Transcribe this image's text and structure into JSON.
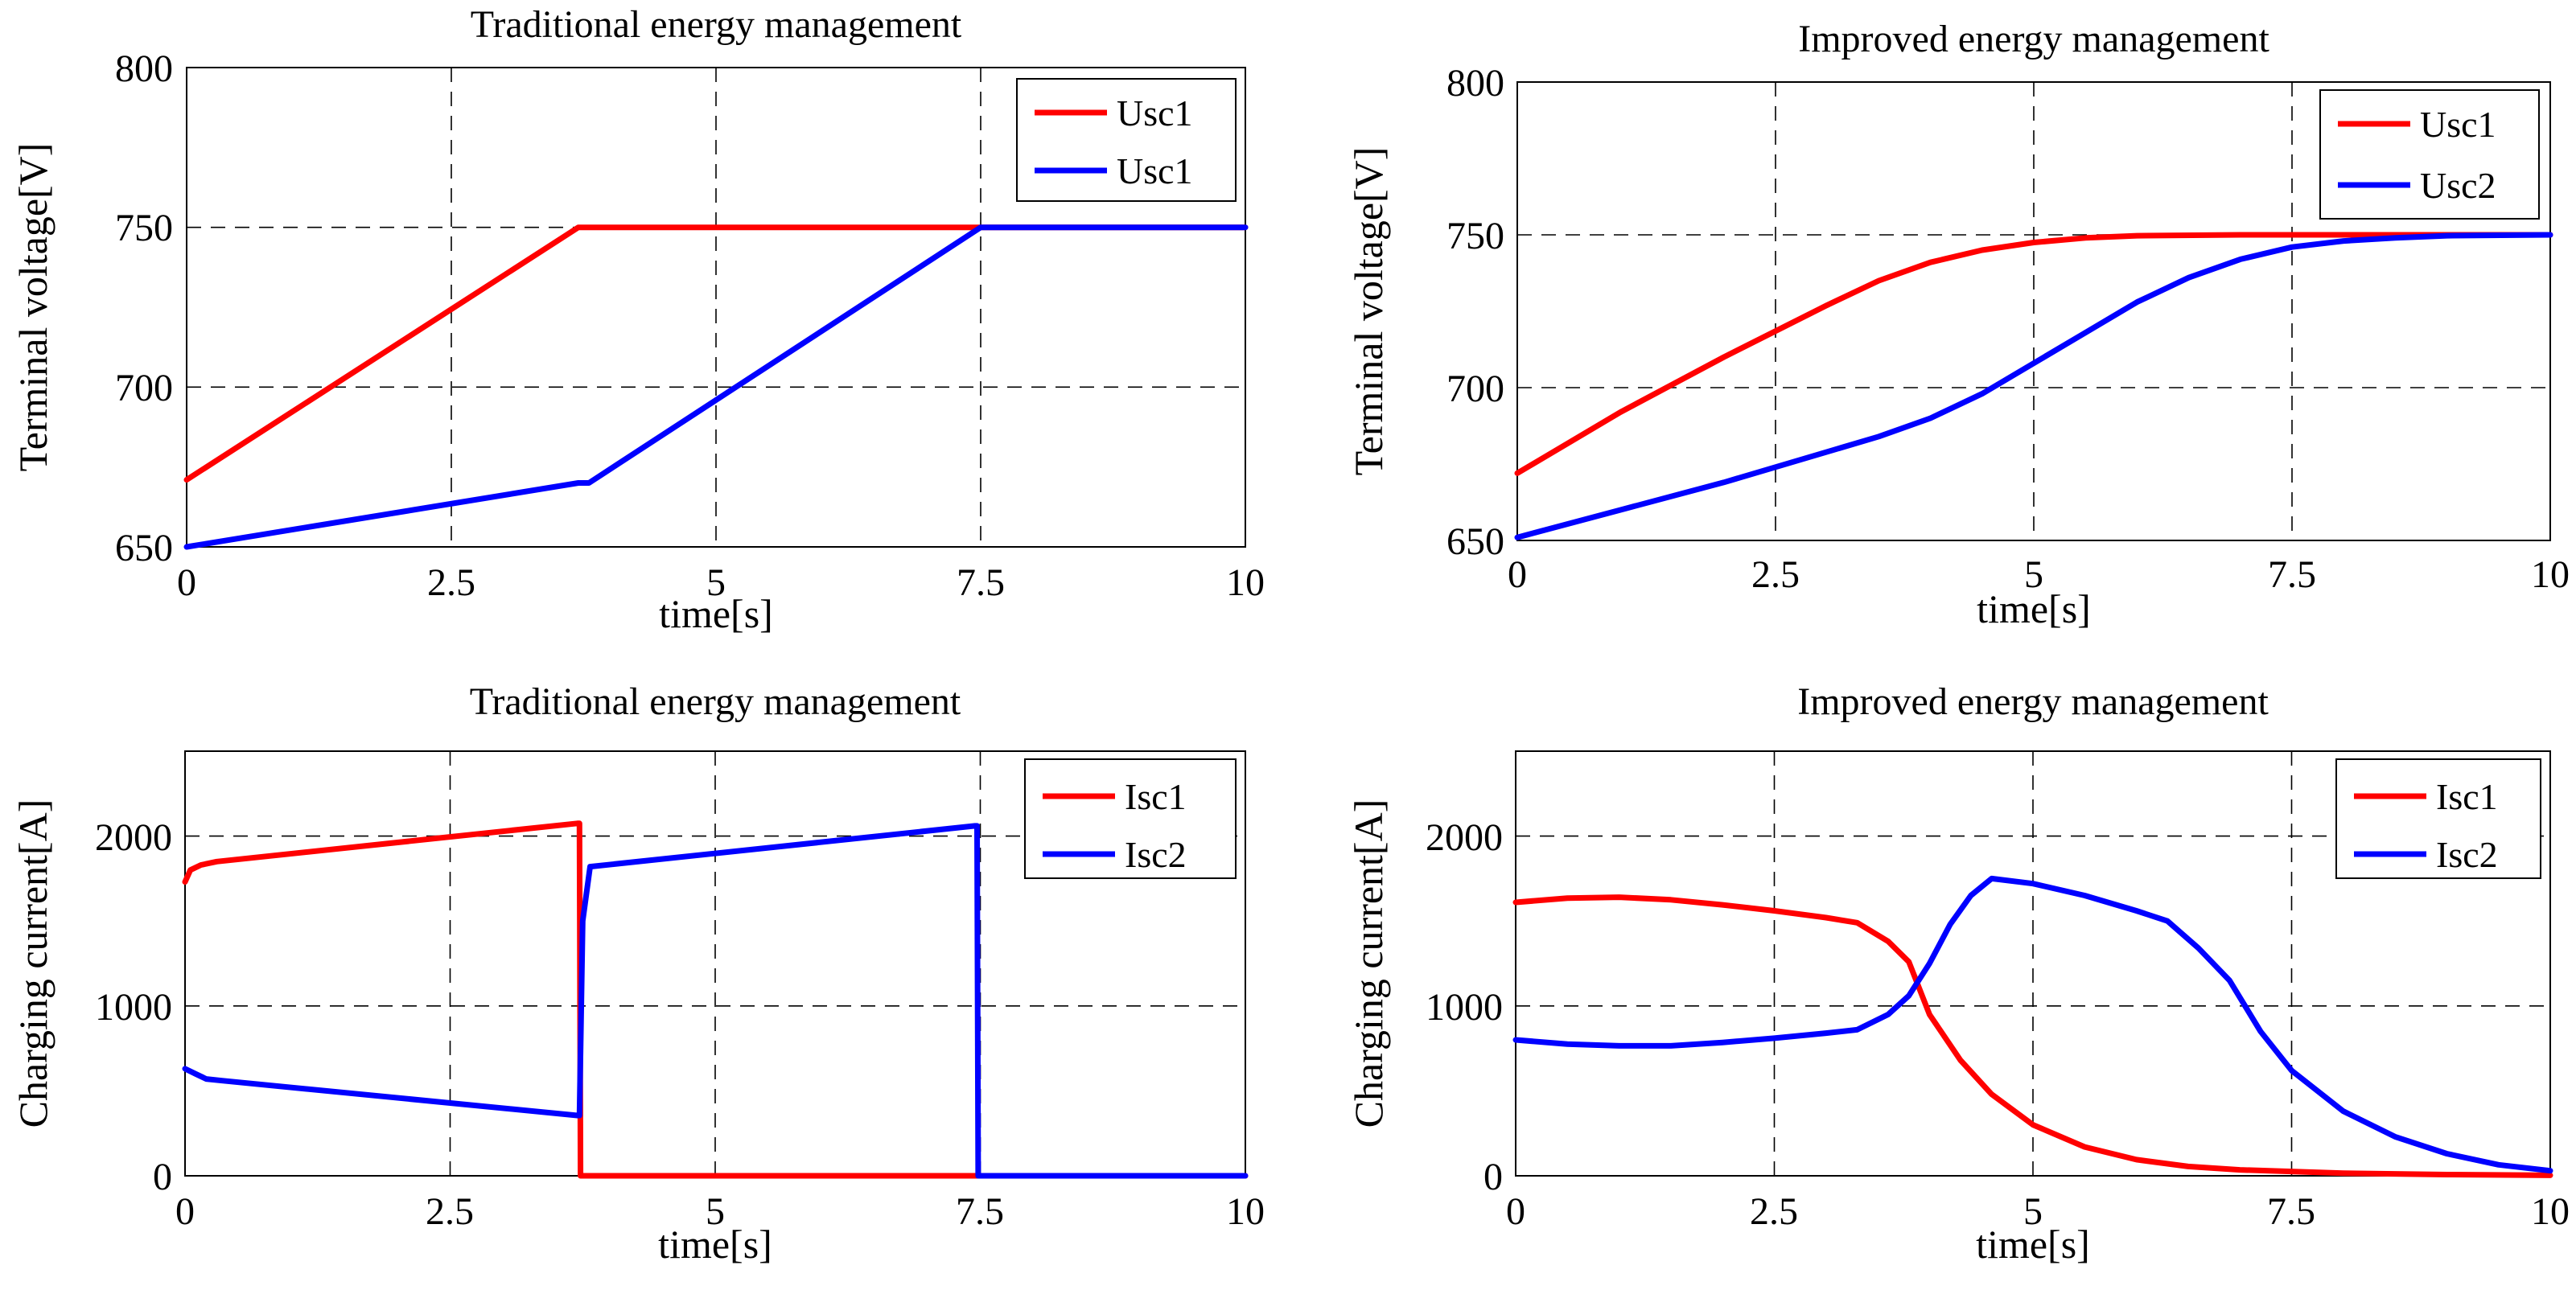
{
  "chart_data": [
    {
      "type": "line",
      "title": "Traditional energy management",
      "xlabel": "time[s]",
      "ylabel": "Terminal voltage[V]",
      "xlim": [
        0,
        10
      ],
      "ylim": [
        650,
        800
      ],
      "xticks": [
        0,
        2.5,
        5,
        7.5,
        10
      ],
      "xtick_labels": [
        "0",
        "2.5",
        "5",
        "7.5",
        "10"
      ],
      "yticks": [
        650,
        700,
        750,
        800
      ],
      "ytick_labels": [
        "650",
        "700",
        "750",
        "800"
      ],
      "grid": true,
      "legend_position": "top-right",
      "series": [
        {
          "name": "Usc1",
          "color": "#ff0000",
          "x": [
            0,
            3.7,
            10
          ],
          "y": [
            671,
            750,
            750
          ]
        },
        {
          "name": "Usc1",
          "color": "#0000ff",
          "x": [
            0,
            3.7,
            3.8,
            7.5,
            10
          ],
          "y": [
            650,
            670,
            670,
            750,
            750
          ]
        }
      ]
    },
    {
      "type": "line",
      "title": "Improved energy management",
      "xlabel": "time[s]",
      "ylabel": "Terminal voltage[V]",
      "xlim": [
        0,
        10
      ],
      "ylim": [
        650,
        800
      ],
      "xticks": [
        0,
        2.5,
        5,
        7.5,
        10
      ],
      "xtick_labels": [
        "0",
        "2.5",
        "5",
        "7.5",
        "10"
      ],
      "yticks": [
        650,
        700,
        750,
        800
      ],
      "ytick_labels": [
        "650",
        "700",
        "750",
        "800"
      ],
      "grid": true,
      "legend_position": "top-right",
      "series": [
        {
          "name": "Usc1",
          "color": "#ff0000",
          "x": [
            0,
            1,
            2,
            3,
            3.5,
            4,
            4.5,
            5,
            5.5,
            6,
            7,
            8,
            10
          ],
          "y": [
            672,
            692,
            710,
            727,
            735,
            741,
            745,
            747.5,
            749,
            749.7,
            750,
            750,
            750
          ]
        },
        {
          "name": "Usc2",
          "color": "#0000ff",
          "x": [
            0,
            1,
            2,
            3,
            3.5,
            4,
            4.5,
            5,
            5.5,
            6,
            6.5,
            7,
            7.5,
            8,
            8.5,
            9,
            10
          ],
          "y": [
            651,
            660,
            669,
            679,
            684,
            690,
            698,
            708,
            718,
            728,
            736,
            742,
            746,
            748,
            749,
            749.7,
            750
          ]
        }
      ]
    },
    {
      "type": "line",
      "title": "Traditional energy management",
      "xlabel": "time[s]",
      "ylabel": "Charging current[A]",
      "xlim": [
        0,
        10
      ],
      "ylim": [
        0,
        2500
      ],
      "xticks": [
        0,
        2.5,
        5,
        7.5,
        10
      ],
      "xtick_labels": [
        "0",
        "2.5",
        "5",
        "7.5",
        "10"
      ],
      "yticks": [
        0,
        1000,
        2000
      ],
      "ytick_labels": [
        "0",
        "1000",
        "2000"
      ],
      "grid": true,
      "legend_position": "top-right",
      "series": [
        {
          "name": "Isc1",
          "color": "#ff0000",
          "x": [
            0,
            0.05,
            0.15,
            0.3,
            3.7,
            3.72,
            3.73,
            10
          ],
          "y": [
            1730,
            1800,
            1830,
            1850,
            2075,
            2075,
            0,
            0
          ]
        },
        {
          "name": "Isc2",
          "color": "#0000ff",
          "x": [
            0,
            0.1,
            0.2,
            0.35,
            3.7,
            3.72,
            3.75,
            3.82,
            7.45,
            7.47,
            7.48,
            10
          ],
          "y": [
            630,
            600,
            570,
            560,
            355,
            355,
            1500,
            1820,
            2060,
            2060,
            0,
            0
          ]
        }
      ]
    },
    {
      "type": "line",
      "title": "Improved energy management",
      "xlabel": "time[s]",
      "ylabel": "Charging current[A]",
      "xlim": [
        0,
        10
      ],
      "ylim": [
        0,
        2500
      ],
      "xticks": [
        0,
        2.5,
        5,
        7.5,
        10
      ],
      "xtick_labels": [
        "0",
        "2.5",
        "5",
        "7.5",
        "10"
      ],
      "yticks": [
        0,
        1000,
        2000
      ],
      "ytick_labels": [
        "0",
        "1000",
        "2000"
      ],
      "grid": true,
      "legend_position": "top-right",
      "series": [
        {
          "name": "Isc1",
          "color": "#ff0000",
          "x": [
            0,
            0.5,
            1,
            1.5,
            2,
            2.5,
            3,
            3.3,
            3.6,
            3.8,
            4,
            4.3,
            4.6,
            5,
            5.5,
            6,
            6.5,
            7,
            8,
            9,
            10
          ],
          "y": [
            1610,
            1635,
            1640,
            1625,
            1595,
            1560,
            1520,
            1490,
            1380,
            1260,
            950,
            680,
            480,
            300,
            170,
            95,
            55,
            35,
            15,
            7,
            3
          ]
        },
        {
          "name": "Isc2",
          "color": "#0000ff",
          "x": [
            0,
            0.5,
            1,
            1.5,
            2,
            2.5,
            3,
            3.3,
            3.6,
            3.8,
            4,
            4.2,
            4.4,
            4.6,
            5,
            5.5,
            6,
            6.3,
            6.6,
            6.9,
            7.2,
            7.5,
            8,
            8.5,
            9,
            9.5,
            10
          ],
          "y": [
            800,
            775,
            765,
            765,
            785,
            810,
            840,
            860,
            950,
            1060,
            1250,
            1480,
            1650,
            1750,
            1720,
            1650,
            1560,
            1500,
            1340,
            1150,
            850,
            620,
            380,
            230,
            130,
            65,
            30
          ]
        }
      ]
    }
  ]
}
